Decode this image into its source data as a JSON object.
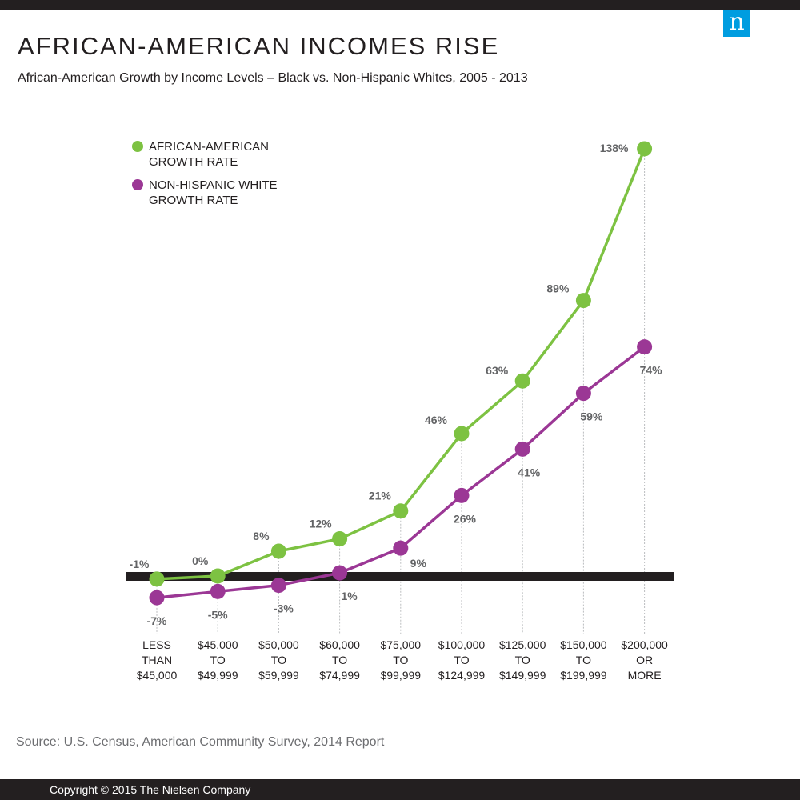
{
  "header": {
    "title": "AFRICAN-AMERICAN INCOMES RISE",
    "subtitle": "African-American Growth by Income Levels – Black vs. Non-Hispanic Whites, 2005 - 2013",
    "logo_letter": "n"
  },
  "chart_data": {
    "type": "line",
    "categories": [
      [
        "LESS",
        "THAN",
        "$45,000"
      ],
      [
        "$45,000",
        "TO",
        "$49,999"
      ],
      [
        "$50,000",
        "TO",
        "$59,999"
      ],
      [
        "$60,000",
        "TO",
        "$74,999"
      ],
      [
        "$75,000",
        "TO",
        "$99,999"
      ],
      [
        "$100,000",
        "TO",
        "$124,999"
      ],
      [
        "$125,000",
        "TO",
        "$149,999"
      ],
      [
        "$150,000",
        "TO",
        "$199,999"
      ],
      [
        "$200,000",
        "OR",
        "MORE"
      ]
    ],
    "series": [
      {
        "name": "AFRICAN-AMERICAN GROWTH RATE",
        "legend_lines": [
          "AFRICAN-AMERICAN",
          "GROWTH RATE"
        ],
        "color": "#7dc242",
        "values": [
          -1,
          0,
          8,
          12,
          21,
          46,
          63,
          89,
          138
        ],
        "labels": [
          "-1%",
          "0%",
          "8%",
          "12%",
          "21%",
          "46%",
          "63%",
          "89%",
          "138%"
        ]
      },
      {
        "name": "NON-HISPANIC WHITE GROWTH RATE",
        "legend_lines": [
          "NON-HISPANIC WHITE",
          "GROWTH RATE"
        ],
        "color": "#9b3795",
        "values": [
          -7,
          -5,
          -3,
          1,
          9,
          26,
          41,
          59,
          74
        ],
        "labels": [
          "-7%",
          "-5%",
          "-3%",
          "1%",
          "9%",
          "26%",
          "41%",
          "59%",
          "74%"
        ]
      }
    ],
    "baseline": 0,
    "ylim": [
      -10,
      138
    ],
    "grid": false,
    "legend_position": "top-left",
    "zero_line_color": "#231f20",
    "guide_color": "#bcbec0"
  },
  "footer": {
    "source": "Source: U.S. Census, American Community Survey, 2014 Report",
    "copyright": "Copyright © 2015 The Nielsen Company"
  }
}
